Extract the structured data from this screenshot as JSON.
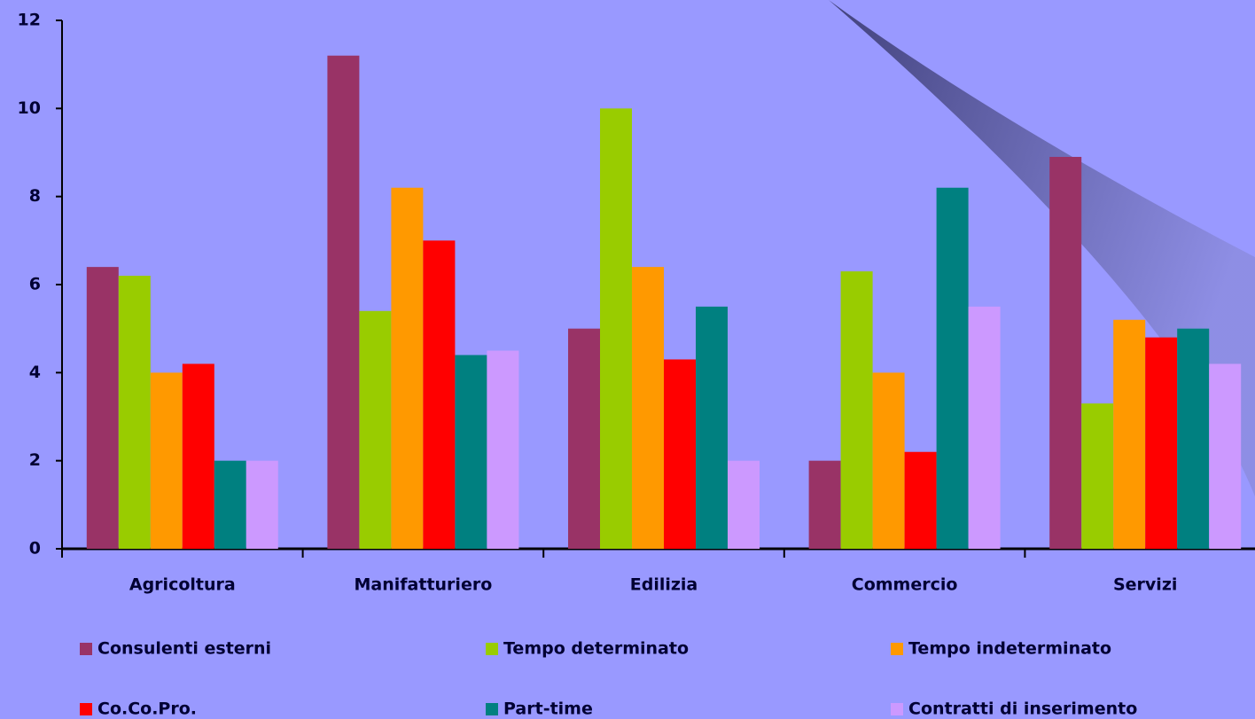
{
  "chart_data": {
    "type": "bar",
    "categories": [
      "Agricoltura",
      "Manifatturiero",
      "Edilizia",
      "Commercio",
      "Servizi"
    ],
    "series": [
      {
        "name": "Consulenti esterni",
        "color": "#993366",
        "values": [
          6.4,
          11.2,
          5.0,
          2.0,
          8.9
        ]
      },
      {
        "name": "Tempo determinato",
        "color": "#99cc00",
        "values": [
          6.2,
          5.4,
          10.0,
          6.3,
          3.3
        ]
      },
      {
        "name": "Tempo indeterminato",
        "color": "#ff9900",
        "values": [
          4.0,
          8.2,
          6.4,
          4.0,
          5.2
        ]
      },
      {
        "name": "Co.Co.Pro.",
        "color": "#ff0000",
        "values": [
          4.2,
          7.0,
          4.3,
          2.2,
          4.8
        ]
      },
      {
        "name": "Part-time",
        "color": "#008080",
        "values": [
          2.0,
          4.4,
          5.5,
          8.2,
          5.0
        ]
      },
      {
        "name": "Contratti di inserimento",
        "color": "#cc99ff",
        "values": [
          2.0,
          4.5,
          2.0,
          5.5,
          4.2
        ]
      }
    ],
    "ylim": [
      0,
      12
    ],
    "yticks": [
      0,
      2,
      4,
      6,
      8,
      10,
      12
    ],
    "grid": false,
    "legend": "bottom"
  }
}
